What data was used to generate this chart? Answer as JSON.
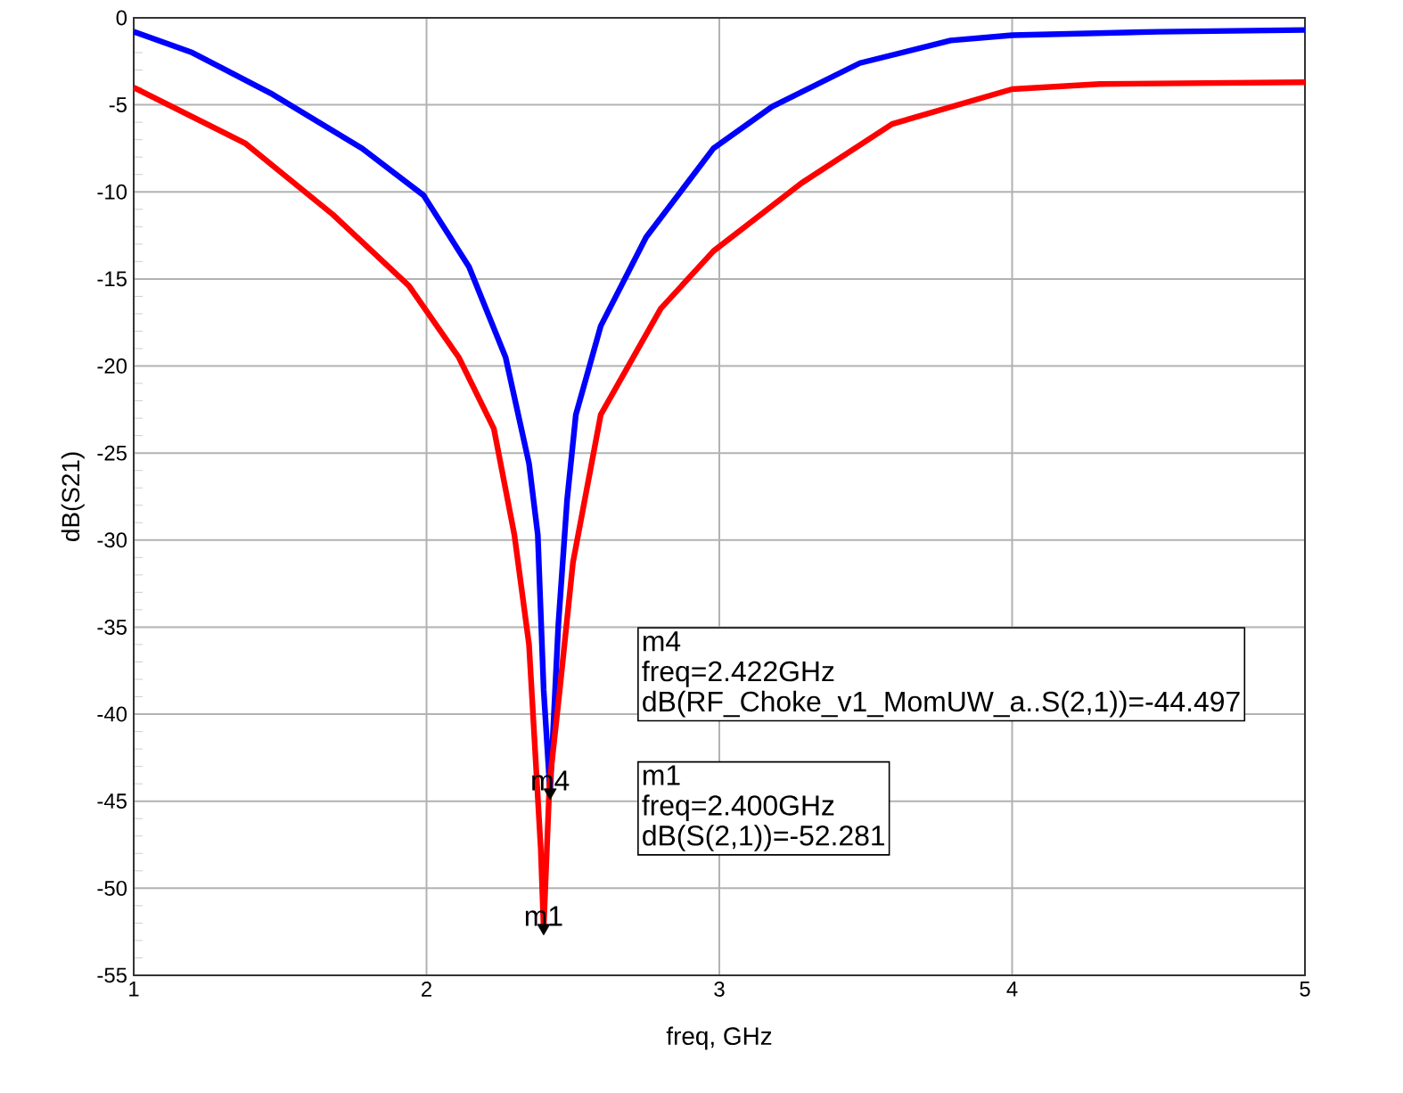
{
  "chart_data": {
    "type": "line",
    "xlabel": "freq, GHz",
    "ylabel": "dB(S21)",
    "xlim": [
      1,
      5
    ],
    "ylim": [
      -55,
      0
    ],
    "xticks": [
      1,
      2,
      3,
      4,
      5
    ],
    "yticks": [
      -55,
      -50,
      -45,
      -40,
      -35,
      -30,
      -25,
      -20,
      -15,
      -10,
      -5,
      0
    ],
    "grid": true,
    "series": [
      {
        "color": "#0000ff",
        "x": [
          1,
          1.2,
          1.475,
          1.78,
          1.99,
          2.145,
          2.27,
          2.35,
          2.38,
          2.4,
          2.422,
          2.45,
          2.48,
          2.51,
          2.595,
          2.75,
          2.98,
          3.18,
          3.48,
          3.79,
          4.0,
          4.5,
          5
        ],
        "values": [
          -0.8,
          -2.0,
          -4.4,
          -7.5,
          -10.2,
          -14.3,
          -19.5,
          -25.6,
          -29.7,
          -38.6,
          -44.5,
          -34.9,
          -27.7,
          -22.8,
          -17.7,
          -12.6,
          -7.5,
          -5.1,
          -2.6,
          -1.3,
          -1.0,
          -0.8,
          -0.7
        ]
      },
      {
        "color": "#ff0000",
        "x": [
          1,
          1.38,
          1.68,
          1.94,
          2.11,
          2.23,
          2.3,
          2.35,
          2.39,
          2.4,
          2.42,
          2.455,
          2.5,
          2.595,
          2.8,
          2.98,
          3.28,
          3.59,
          4.0,
          4.3,
          5
        ],
        "values": [
          -4.0,
          -7.2,
          -11.3,
          -15.4,
          -19.5,
          -23.6,
          -29.7,
          -36.0,
          -47.7,
          -52.3,
          -44.0,
          -38.6,
          -31.3,
          -22.8,
          -16.7,
          -13.4,
          -9.5,
          -6.1,
          -4.1,
          -3.8,
          -3.7
        ]
      }
    ],
    "annotations": [
      {
        "text": "m4",
        "x": 2.422,
        "y": -44.497
      },
      {
        "text": "m1",
        "x": 2.4,
        "y": -52.281
      },
      "m4",
      "freq=2.422GHz",
      "dB(RF_Choke_v1_MomUW_a..S(2,1))=-44.497",
      "m1",
      "freq=2.400GHz",
      "dB(S(2,1))=-52.281"
    ]
  }
}
